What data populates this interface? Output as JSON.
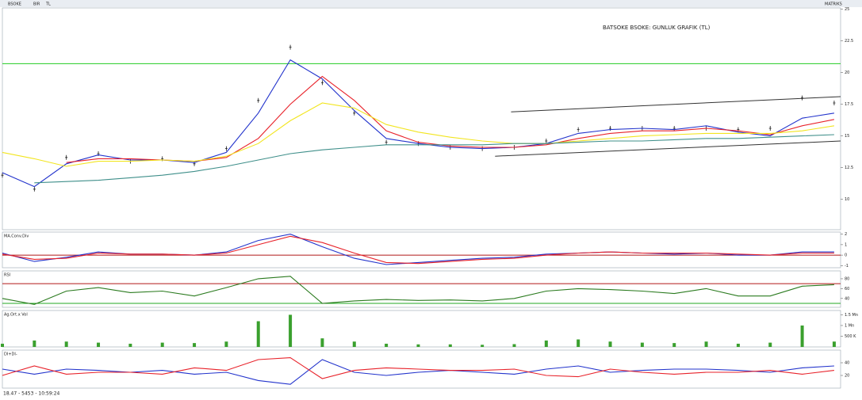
{
  "toolbar": {
    "symbol": "BSOKE",
    "period": "BIR",
    "currency": "TL",
    "brand": "MATRIKS"
  },
  "status": "18.47 - 5453 - 10:59:24",
  "chart_data": [
    {
      "type": "line",
      "title": "BATSOKE BSOKE: GUNLUK GRAFIK (TL)",
      "x": [
        0,
        1,
        2,
        3,
        4,
        5,
        6,
        7,
        8,
        9,
        10,
        11,
        12,
        13,
        14,
        15,
        16,
        17,
        18,
        19,
        20,
        21,
        22,
        23,
        24,
        25,
        26
      ],
      "xlim": [
        0,
        26.2
      ],
      "ylim": [
        7.6,
        25.1
      ],
      "yticks": [
        10,
        12.5,
        15,
        17.5,
        20,
        22.5,
        25
      ],
      "series": [
        {
          "color": "#1a1a1a",
          "style": "ticks",
          "values": [
            11.9,
            10.8,
            13.3,
            13.6,
            13.0,
            13.2,
            12.8,
            14.0,
            17.8,
            22.0,
            19.2,
            16.8,
            14.5,
            14.4,
            14.1,
            14.0,
            14.1,
            14.6,
            15.5,
            15.6,
            15.6,
            15.6,
            15.6,
            15.5,
            15.6,
            18.0,
            17.6
          ]
        },
        {
          "color": "#2233cc",
          "values": [
            12.1,
            11.0,
            12.8,
            13.5,
            13.1,
            13.1,
            12.9,
            13.7,
            16.8,
            21.0,
            19.5,
            17.0,
            14.8,
            14.4,
            14.1,
            14.0,
            14.1,
            14.4,
            15.2,
            15.5,
            15.6,
            15.5,
            15.8,
            15.3,
            15.0,
            16.4,
            16.8
          ]
        },
        {
          "color": "#e8222a",
          "values": [
            null,
            null,
            12.9,
            13.2,
            13.2,
            13.1,
            13.0,
            13.3,
            14.8,
            17.5,
            19.7,
            17.8,
            15.4,
            14.5,
            14.2,
            14.1,
            14.1,
            14.3,
            14.8,
            15.2,
            15.4,
            15.4,
            15.6,
            15.4,
            15.1,
            15.8,
            16.3
          ]
        },
        {
          "color": "#f2e51f",
          "values": [
            13.7,
            13.2,
            12.6,
            13.0,
            13.0,
            13.1,
            13.0,
            13.4,
            14.4,
            16.2,
            17.6,
            17.2,
            15.9,
            15.3,
            14.9,
            14.6,
            14.4,
            14.4,
            14.6,
            14.8,
            15.0,
            15.1,
            15.2,
            15.2,
            15.2,
            15.4,
            15.8
          ]
        },
        {
          "color": "#3f8f8a",
          "values": [
            null,
            11.3,
            11.4,
            11.5,
            11.7,
            11.9,
            12.2,
            12.6,
            13.1,
            13.6,
            13.9,
            14.1,
            14.3,
            14.3,
            14.3,
            14.3,
            14.4,
            14.4,
            14.5,
            14.6,
            14.6,
            14.7,
            14.8,
            14.8,
            14.9,
            15.0,
            15.1
          ]
        }
      ],
      "hlines": [
        {
          "value": 20.7,
          "color": "#22cc22"
        }
      ],
      "trendlines": [
        {
          "x": [
            15.9,
            26.2
          ],
          "values": [
            16.9,
            18.1
          ],
          "color": "#333"
        },
        {
          "x": [
            15.4,
            26.2
          ],
          "values": [
            13.4,
            14.6
          ],
          "color": "#333"
        }
      ]
    },
    {
      "type": "line",
      "title": "MA.Conv.Div",
      "x": [
        0,
        1,
        2,
        3,
        4,
        5,
        6,
        7,
        8,
        9,
        10,
        11,
        12,
        13,
        14,
        15,
        16,
        17,
        18,
        19,
        20,
        21,
        22,
        23,
        24,
        25,
        26
      ],
      "xlim": [
        0,
        26.2
      ],
      "ylim": [
        -1.2,
        2.2
      ],
      "yticks": [
        -1,
        0,
        1,
        2
      ],
      "series": [
        {
          "color": "#2233cc",
          "values": [
            0.2,
            -0.6,
            -0.2,
            0.3,
            0.1,
            0.1,
            0.0,
            0.3,
            1.4,
            2.0,
            0.8,
            -0.3,
            -0.9,
            -0.7,
            -0.5,
            -0.3,
            -0.2,
            0.1,
            0.2,
            0.3,
            0.2,
            0.1,
            0.2,
            0.0,
            0.0,
            0.3,
            0.3
          ]
        },
        {
          "color": "#e8222a",
          "values": [
            0.1,
            -0.4,
            -0.3,
            0.2,
            0.1,
            0.1,
            0.0,
            0.2,
            1.0,
            1.8,
            1.2,
            0.2,
            -0.7,
            -0.8,
            -0.6,
            -0.4,
            -0.3,
            0.0,
            0.2,
            0.3,
            0.2,
            0.2,
            0.2,
            0.1,
            0.0,
            0.2,
            0.2
          ]
        }
      ],
      "hlines": [
        {
          "value": 0,
          "color": "#b01818"
        }
      ]
    },
    {
      "type": "line",
      "title": "RSI",
      "x": [
        0,
        1,
        2,
        3,
        4,
        5,
        6,
        7,
        8,
        9,
        10,
        11,
        12,
        13,
        14,
        15,
        16,
        17,
        18,
        19,
        20,
        21,
        22,
        23,
        24,
        25,
        26
      ],
      "xlim": [
        0,
        26.2
      ],
      "ylim": [
        22,
        96
      ],
      "yticks": [
        40,
        60,
        80
      ],
      "series": [
        {
          "color": "#2a7a1e",
          "values": [
            40,
            28,
            55,
            62,
            52,
            55,
            45,
            62,
            80,
            85,
            30,
            35,
            38,
            36,
            37,
            35,
            40,
            55,
            60,
            58,
            55,
            50,
            60,
            45,
            45,
            65,
            68
          ]
        }
      ],
      "hlines": [
        {
          "value": 70,
          "color": "#b01818"
        },
        {
          "value": 30,
          "color": "#22aa22"
        }
      ]
    },
    {
      "type": "bar",
      "title": "Ag.Ort.x Vol",
      "x": [
        0,
        1,
        2,
        3,
        4,
        5,
        6,
        7,
        8,
        9,
        10,
        11,
        12,
        13,
        14,
        15,
        16,
        17,
        18,
        19,
        20,
        21,
        22,
        23,
        24,
        25,
        26
      ],
      "xlim": [
        0,
        26.2
      ],
      "ylim": [
        0,
        1700000
      ],
      "yticks": [
        {
          "value": 500000,
          "label": "500 K"
        },
        {
          "value": 1000000,
          "label": "1 Mn"
        },
        {
          "value": 1500000,
          "label": "1.5 Mn"
        }
      ],
      "series": [
        {
          "color": "#3aa02e",
          "values": [
            150000,
            300000,
            250000,
            200000,
            150000,
            200000,
            180000,
            250000,
            1200000,
            1500000,
            400000,
            250000,
            150000,
            120000,
            120000,
            100000,
            130000,
            300000,
            350000,
            250000,
            200000,
            180000,
            250000,
            150000,
            200000,
            1000000,
            250000
          ]
        }
      ]
    },
    {
      "type": "line",
      "title": "DI+DI-",
      "x": [
        0,
        1,
        2,
        3,
        4,
        5,
        6,
        7,
        8,
        9,
        10,
        11,
        12,
        13,
        14,
        15,
        16,
        17,
        18,
        19,
        20,
        21,
        22,
        23,
        24,
        25,
        26
      ],
      "xlim": [
        0,
        26.2
      ],
      "ylim": [
        0,
        60
      ],
      "yticks": [
        20,
        40
      ],
      "series": [
        {
          "color": "#2233cc",
          "values": [
            30,
            22,
            30,
            28,
            25,
            28,
            22,
            25,
            12,
            6,
            45,
            25,
            20,
            25,
            28,
            25,
            22,
            30,
            35,
            25,
            28,
            30,
            30,
            28,
            25,
            32,
            35
          ]
        },
        {
          "color": "#e8222a",
          "values": [
            20,
            35,
            22,
            25,
            25,
            22,
            32,
            28,
            45,
            48,
            15,
            28,
            32,
            30,
            28,
            28,
            30,
            20,
            18,
            30,
            25,
            22,
            25,
            25,
            28,
            22,
            28
          ]
        }
      ]
    }
  ]
}
